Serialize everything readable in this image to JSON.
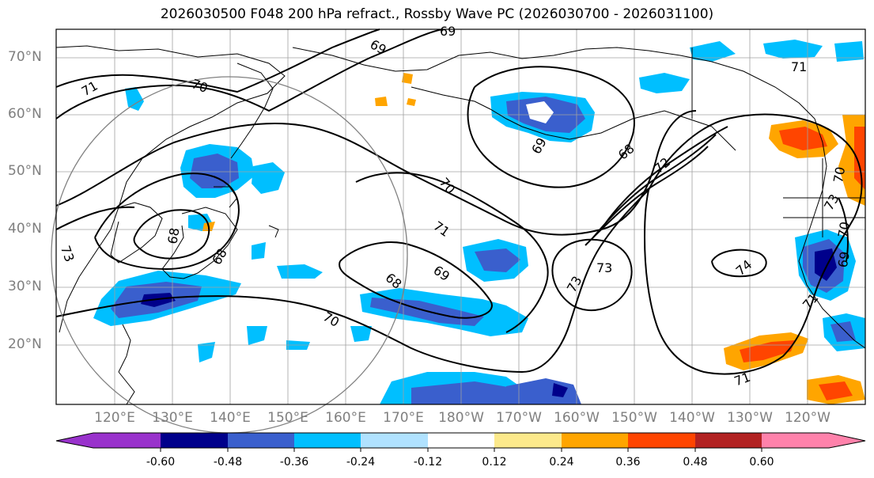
{
  "title": "2026030500 F048 200 hPa refract., Rossby Wave PC (2026030700 - 2026031100)",
  "lat_labels": [
    "70°N",
    "60°N",
    "50°N",
    "40°N",
    "30°N",
    "20°N"
  ],
  "lon_labels": [
    "120°E",
    "130°E",
    "140°E",
    "150°E",
    "160°E",
    "170°E",
    "180°W",
    "170°W",
    "160°W",
    "150°W",
    "140°W",
    "130°W",
    "120°W"
  ],
  "contour_labels": [
    "69",
    "69",
    "71",
    "70",
    "70",
    "71",
    "68",
    "68",
    "69",
    "68",
    "72",
    "73",
    "73",
    "74",
    "73",
    "70",
    "71",
    "73",
    "71",
    "70",
    "69",
    "68",
    "71",
    "69",
    "70"
  ],
  "colorbar": {
    "ticks": [
      "-0.60",
      "-0.48",
      "-0.36",
      "-0.24",
      "-0.12",
      "0.12",
      "0.24",
      "0.36",
      "0.48",
      "0.60"
    ],
    "colors": [
      "#9932cc",
      "#00008b",
      "#3a5fcd",
      "#00bfff",
      "#b0e2ff",
      "#ffffff",
      "#fce98b",
      "#ffa500",
      "#ff4500",
      "#b22222",
      "#ff82ab"
    ]
  },
  "colors": {
    "deep_blue": "#00008b",
    "mid_blue": "#3a5fcd",
    "sky_blue": "#00bfff",
    "light_blue": "#b0e2ff",
    "yellow": "#fce98b",
    "orange": "#ffa500",
    "red_orange": "#ff4500",
    "circle": "#808080"
  }
}
